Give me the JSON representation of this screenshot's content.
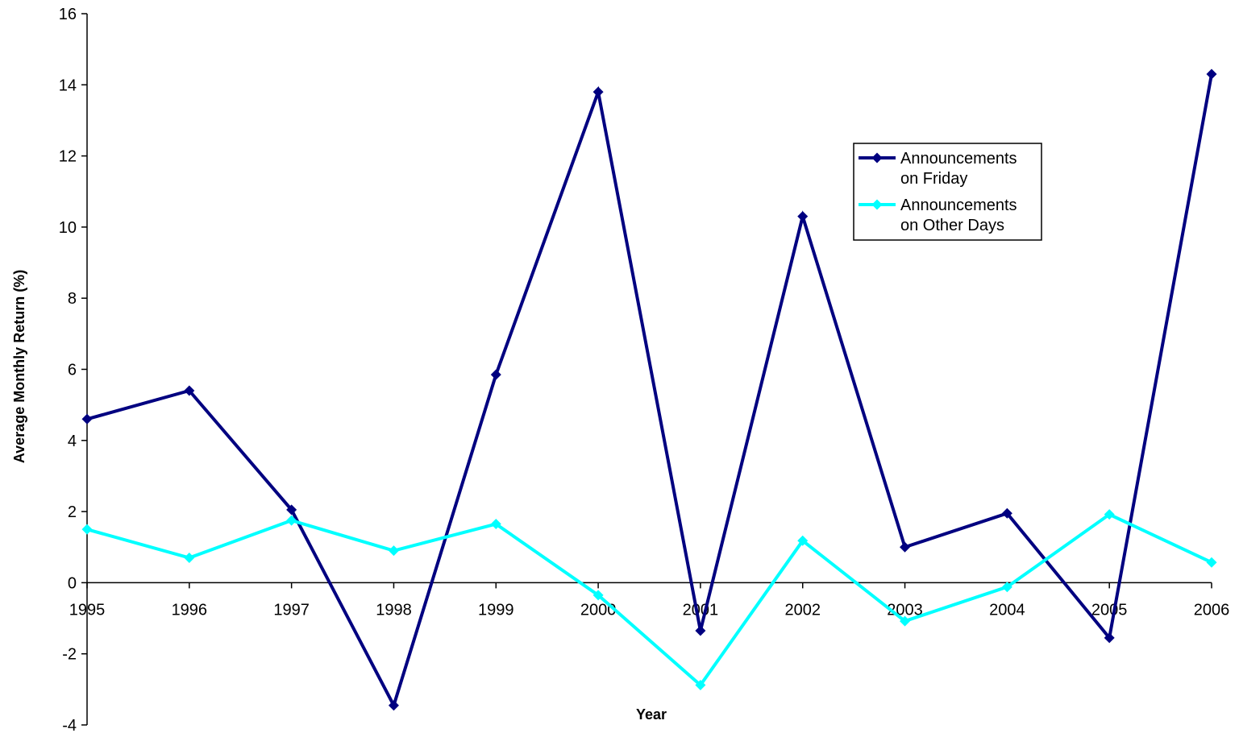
{
  "chart_data": {
    "type": "line",
    "title": "",
    "xlabel": "Year",
    "ylabel": "Average Monthly Return (%)",
    "x": [
      "1995",
      "1996",
      "1997",
      "1998",
      "1999",
      "2000",
      "2001",
      "2002",
      "2003",
      "2004",
      "2005",
      "2006"
    ],
    "ylim": [
      -4,
      16
    ],
    "yticks": [
      "-4",
      "-2",
      "0",
      "2",
      "4",
      "6",
      "8",
      "10",
      "12",
      "14",
      "16"
    ],
    "grid": false,
    "legend_position": "upper-right",
    "series": [
      {
        "name": "Announcements on Friday",
        "legend_lines": [
          "Announcements",
          "on Friday"
        ],
        "color": "#000080",
        "marker": "diamond",
        "values": [
          4.6,
          5.4,
          2.05,
          -3.45,
          5.85,
          13.8,
          -1.35,
          10.3,
          1.0,
          1.95,
          -1.55,
          14.3
        ]
      },
      {
        "name": "Announcements on Other Days",
        "legend_lines": [
          "Announcements",
          "on Other Days"
        ],
        "color": "#00FFFF",
        "marker": "diamond",
        "values": [
          1.5,
          0.7,
          1.75,
          0.9,
          1.65,
          -0.35,
          -2.88,
          1.18,
          -1.08,
          -0.12,
          1.92,
          0.57
        ]
      }
    ]
  }
}
